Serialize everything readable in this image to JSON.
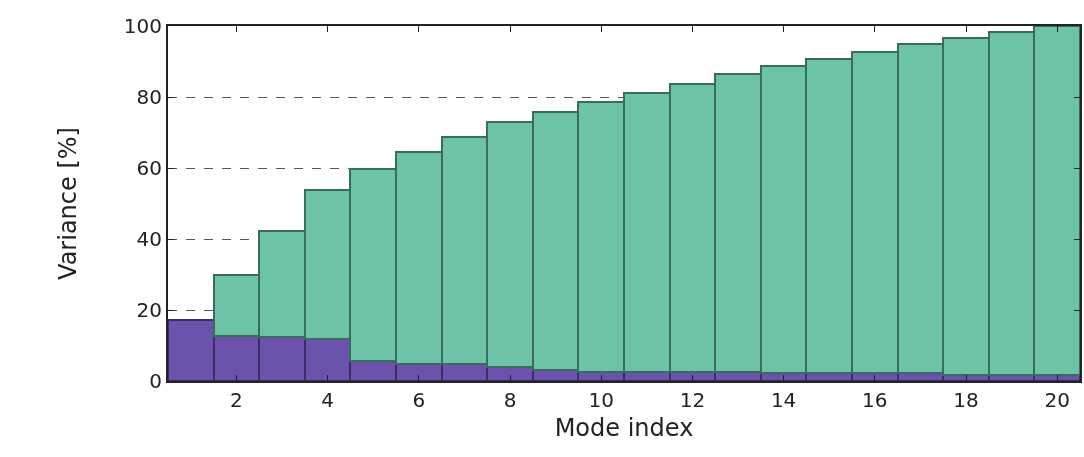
{
  "chart_data": {
    "type": "bar",
    "xlabel": "Mode index",
    "ylabel": "Variance [%]",
    "x": [
      1,
      2,
      3,
      4,
      5,
      6,
      7,
      8,
      9,
      10,
      11,
      12,
      13,
      14,
      15,
      16,
      17,
      18,
      19,
      20
    ],
    "stacked": true,
    "series": [
      {
        "color": "#6a52ad",
        "values": [
          17.2,
          12.7,
          12.3,
          11.9,
          5.7,
          4.8,
          4.8,
          3.9,
          3.1,
          2.6,
          2.6,
          2.6,
          2.6,
          2.2,
          2.2,
          2.2,
          2.2,
          1.6,
          1.6,
          1.6
        ]
      },
      {
        "color": "#6cc3a8",
        "values": [
          null,
          17.1,
          30.0,
          42.0,
          53.9,
          59.6,
          64.0,
          69.0,
          72.8,
          76.0,
          78.5,
          81.2,
          83.9,
          86.5,
          88.6,
          90.5,
          92.6,
          94.9,
          96.7,
          98.4
        ]
      }
    ],
    "xlim": [
      0.5,
      20.5
    ],
    "xticks": [
      2,
      4,
      6,
      8,
      10,
      12,
      14,
      16,
      18,
      20
    ],
    "ylim": [
      0,
      100
    ],
    "yticks": [
      0,
      20,
      40,
      60,
      80,
      100
    ],
    "grid": "y"
  }
}
